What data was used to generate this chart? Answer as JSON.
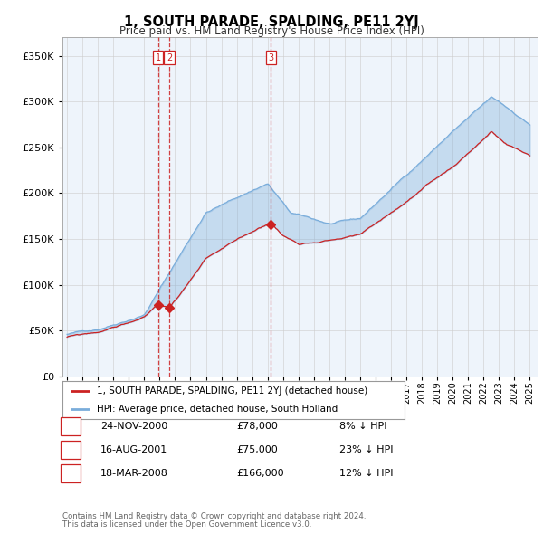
{
  "title": "1, SOUTH PARADE, SPALDING, PE11 2YJ",
  "subtitle": "Price paid vs. HM Land Registry's House Price Index (HPI)",
  "legend_label_red": "1, SOUTH PARADE, SPALDING, PE11 2YJ (detached house)",
  "legend_label_blue": "HPI: Average price, detached house, South Holland",
  "transactions": [
    {
      "num": 1,
      "date": "24-NOV-2000",
      "price": 78000,
      "pct": "8%",
      "dir": "↓"
    },
    {
      "num": 2,
      "date": "16-AUG-2001",
      "price": 75000,
      "pct": "23%",
      "dir": "↓"
    },
    {
      "num": 3,
      "date": "18-MAR-2008",
      "price": 166000,
      "pct": "12%",
      "dir": "↓"
    }
  ],
  "footnote1": "Contains HM Land Registry data © Crown copyright and database right 2024.",
  "footnote2": "This data is licensed under the Open Government Licence v3.0.",
  "vline_dates": [
    2000.896,
    2001.621,
    2008.213
  ],
  "sale_prices": [
    78000,
    75000,
    166000
  ],
  "ylim": [
    0,
    370000
  ],
  "yticks": [
    0,
    50000,
    100000,
    150000,
    200000,
    250000,
    300000,
    350000
  ],
  "red_color": "#cc2222",
  "blue_color": "#7aaddb",
  "fill_color": "#ddeeff",
  "vline_color_red": "#cc2222",
  "vline_color_blue": "#aaccee",
  "bg_color": "#ffffff",
  "grid_color": "#cccccc",
  "chart_bg": "#eef4fb"
}
